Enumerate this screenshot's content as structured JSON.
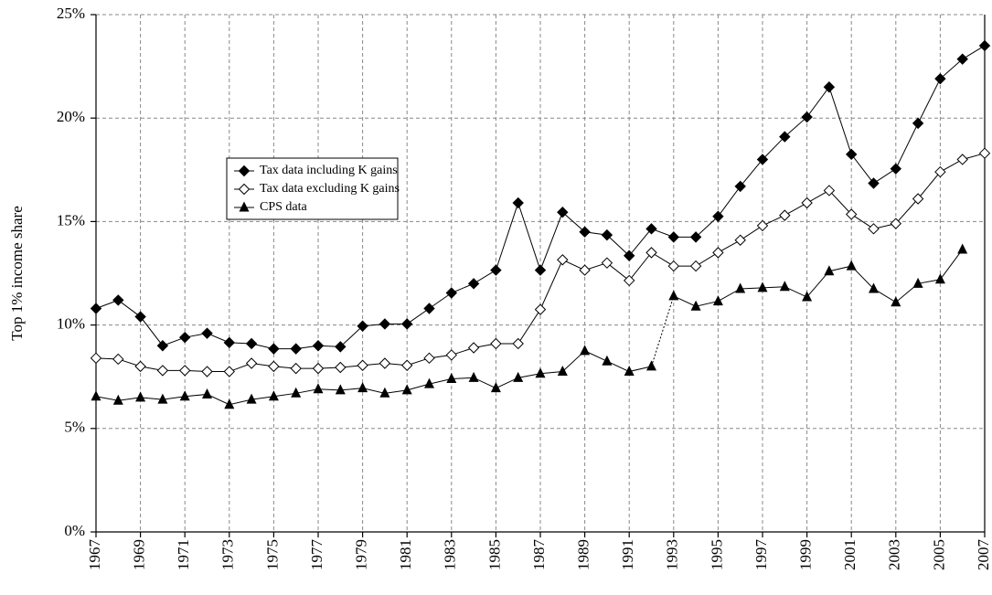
{
  "chart_data": {
    "type": "line",
    "y_label": "Top 1% income share",
    "x": [
      1967,
      1968,
      1969,
      1970,
      1971,
      1972,
      1973,
      1974,
      1975,
      1976,
      1977,
      1978,
      1979,
      1980,
      1981,
      1982,
      1983,
      1984,
      1985,
      1986,
      1987,
      1988,
      1989,
      1990,
      1991,
      1992,
      1993,
      1994,
      1995,
      1996,
      1997,
      1998,
      1999,
      2000,
      2001,
      2002,
      2003,
      2004,
      2005,
      2006,
      2007
    ],
    "series": [
      {
        "name": "Tax data including K gains",
        "color": "#000000",
        "marker": "diamond",
        "values": [
          10.8,
          11.2,
          10.4,
          9.0,
          9.4,
          9.6,
          9.15,
          9.1,
          8.85,
          8.85,
          9.0,
          8.95,
          9.95,
          10.05,
          10.05,
          10.8,
          11.55,
          12.0,
          12.65,
          15.9,
          12.65,
          15.45,
          14.5,
          14.35,
          13.35,
          14.65,
          14.25,
          14.25,
          15.25,
          16.7,
          18.0,
          19.1,
          20.05,
          21.5,
          18.25,
          16.85,
          17.55,
          19.75,
          21.9,
          22.85,
          23.5
        ]
      },
      {
        "name": "Tax data excluding K gains",
        "color": "#000000",
        "marker": "diamond-open",
        "values": [
          8.4,
          8.35,
          8.0,
          7.8,
          7.8,
          7.75,
          7.75,
          8.15,
          8.0,
          7.9,
          7.9,
          7.95,
          8.05,
          8.15,
          8.05,
          8.4,
          8.55,
          8.9,
          9.1,
          9.1,
          10.75,
          13.15,
          12.65,
          13.0,
          12.15,
          13.5,
          12.85,
          12.85,
          13.5,
          14.1,
          14.8,
          15.3,
          15.9,
          16.5,
          15.35,
          14.65,
          14.9,
          16.1,
          17.4,
          18.0,
          18.3
        ]
      },
      {
        "name": "CPS data",
        "color": "#000000",
        "marker": "triangle",
        "dashed_between": [
          1992,
          1993
        ],
        "values": [
          6.55,
          6.35,
          6.5,
          6.4,
          6.55,
          6.65,
          6.15,
          6.4,
          6.55,
          6.7,
          6.9,
          6.85,
          6.95,
          6.7,
          6.85,
          7.15,
          7.4,
          7.45,
          6.95,
          7.45,
          7.65,
          7.75,
          8.75,
          8.25,
          7.75,
          8.0,
          11.4,
          10.9,
          11.15,
          11.75,
          11.8,
          11.85,
          11.35,
          12.6,
          12.85,
          11.75,
          11.1,
          12.0,
          12.2,
          13.65,
          null
        ]
      }
    ],
    "xlim": [
      1967,
      2007
    ],
    "xticks": [
      1967,
      1969,
      1971,
      1973,
      1975,
      1977,
      1979,
      1981,
      1983,
      1985,
      1987,
      1989,
      1991,
      1993,
      1995,
      1997,
      1999,
      2001,
      2003,
      2005,
      2007
    ],
    "ylim": [
      0,
      25
    ],
    "yticks": [
      {
        "value": 0,
        "label": "0%"
      },
      {
        "value": 5,
        "label": "5%"
      },
      {
        "value": 10,
        "label": "10%"
      },
      {
        "value": 15,
        "label": "15%"
      },
      {
        "value": 20,
        "label": "20%"
      },
      {
        "value": 25,
        "label": "25%"
      }
    ],
    "grid": true,
    "legend": "upper-left"
  }
}
